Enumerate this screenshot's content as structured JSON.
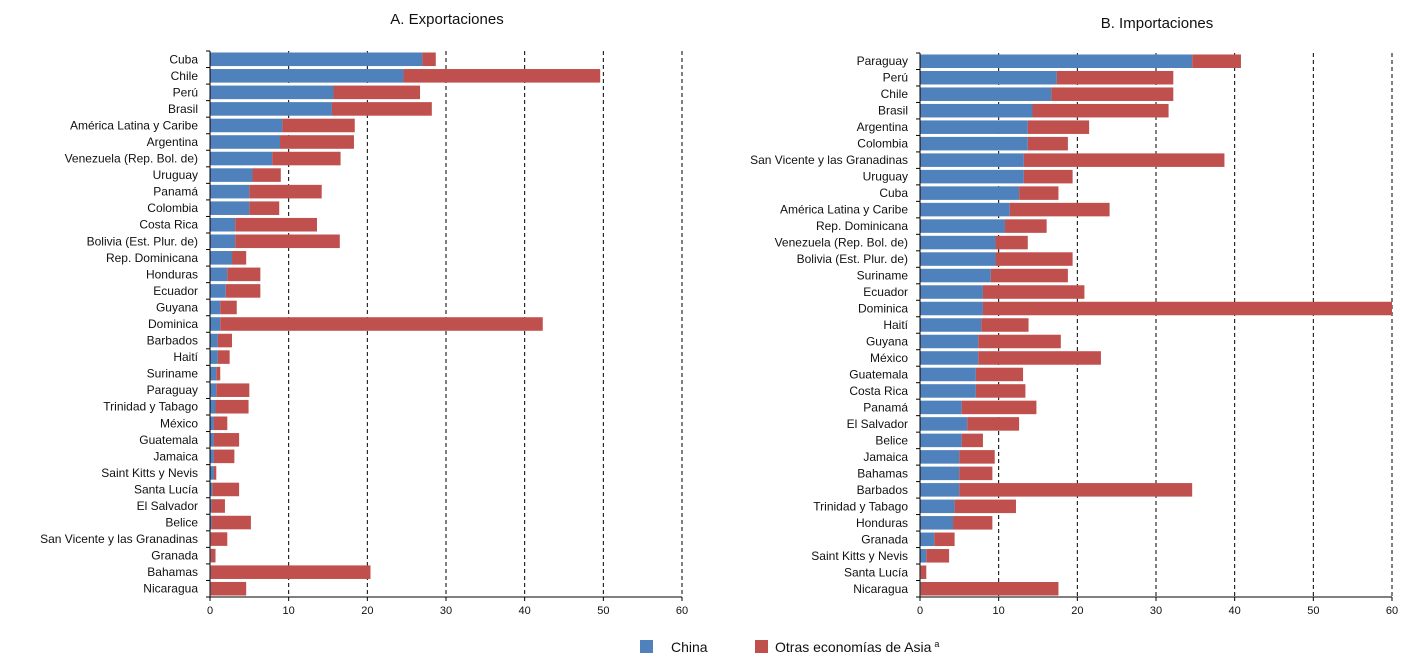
{
  "legend": {
    "china": "China",
    "otras": "Otras economías de Asia",
    "otras_superscript": "a"
  },
  "colors": {
    "china": "#4f81bd",
    "otras": "#c0504d",
    "grid": "#000000"
  },
  "chart_data": [
    {
      "type": "bar",
      "orientation": "horizontal",
      "stacked": true,
      "title": "A. Exportaciones",
      "xlim": [
        0,
        60
      ],
      "xticks": [
        0,
        10,
        20,
        30,
        40,
        50,
        60
      ],
      "grid": "vertical dashed",
      "categories": [
        "Cuba",
        "Chile",
        "Perú",
        "Brasil",
        "América Latina y Caribe",
        "Argentina",
        "Venezuela (Rep. Bol. de)",
        "Uruguay",
        "Panamá",
        "Colombia",
        "Costa Rica",
        "Bolivia (Est. Plur. de)",
        "Rep. Dominicana",
        "Honduras",
        "Ecuador",
        "Guyana",
        "Dominica",
        "Barbados",
        "Haití",
        "Suriname",
        "Paraguay",
        "Trinidad y Tabago",
        "México",
        "Guatemala",
        "Jamaica",
        "Saint Kitts y Nevis",
        "Santa Lucía",
        "El Salvador",
        "Belice",
        "San Vicente y las Granadinas",
        "Granada",
        "Bahamas",
        "Nicaragua"
      ],
      "series": [
        {
          "name": "China",
          "values": [
            27.0,
            24.6,
            15.7,
            15.5,
            9.2,
            8.9,
            7.9,
            5.4,
            5.0,
            5.0,
            3.2,
            3.2,
            2.8,
            2.2,
            2.0,
            1.3,
            1.3,
            1.0,
            1.0,
            0.8,
            0.8,
            0.7,
            0.5,
            0.5,
            0.5,
            0.5,
            0.3,
            0.2,
            0.2,
            0.1,
            0.1,
            0.1,
            0.1
          ]
        },
        {
          "name": "Otras economías de Asia",
          "values": [
            1.7,
            25.0,
            11.0,
            12.7,
            9.2,
            9.4,
            8.7,
            3.6,
            9.2,
            3.8,
            10.4,
            13.3,
            1.8,
            4.2,
            4.4,
            2.1,
            41.0,
            1.8,
            1.5,
            0.5,
            4.2,
            4.2,
            1.7,
            3.2,
            2.6,
            0.3,
            3.4,
            1.7,
            5.0,
            2.1,
            0.6,
            20.3,
            4.5
          ]
        }
      ]
    },
    {
      "type": "bar",
      "orientation": "horizontal",
      "stacked": true,
      "title": "B. Importaciones",
      "xlim": [
        0,
        60
      ],
      "xticks": [
        0,
        10,
        20,
        30,
        40,
        50,
        60
      ],
      "grid": "vertical dashed",
      "categories": [
        "Paraguay",
        "Perú",
        "Chile",
        "Brasil",
        "Argentina",
        "Colombia",
        "San Vicente y las Granadinas",
        "Uruguay",
        "Cuba",
        "América Latina y Caribe",
        "Rep. Dominicana",
        "Venezuela  (Rep. Bol. de)",
        "Bolivia (Est. Plur. de)",
        "Suriname",
        "Ecuador",
        "Dominica",
        "Haití",
        "Guyana",
        "México",
        "Guatemala",
        "Costa Rica",
        "Panamá",
        "El Salvador",
        "Belice",
        "Jamaica",
        "Bahamas",
        "Barbados",
        "Trinidad y Tabago",
        "Honduras",
        "Granada",
        "Saint Kitts y Nevis",
        "Santa Lucía",
        "Nicaragua"
      ],
      "series": [
        {
          "name": "China",
          "values": [
            34.6,
            17.4,
            16.7,
            14.3,
            13.7,
            13.7,
            13.2,
            13.2,
            12.6,
            11.4,
            10.8,
            9.6,
            9.6,
            9.0,
            8.0,
            8.0,
            7.8,
            7.4,
            7.4,
            7.1,
            7.1,
            5.3,
            6.0,
            5.3,
            5.0,
            5.0,
            5.0,
            4.4,
            4.2,
            1.8,
            0.8,
            0.1,
            0.1
          ]
        },
        {
          "name": "Otras economías de Asia",
          "values": [
            6.2,
            14.8,
            15.5,
            17.3,
            7.8,
            5.1,
            25.5,
            6.2,
            5.0,
            12.7,
            5.3,
            4.1,
            9.8,
            9.8,
            12.9,
            52.0,
            6.0,
            10.5,
            15.6,
            6.0,
            6.3,
            9.5,
            6.6,
            2.7,
            4.5,
            4.2,
            29.6,
            7.8,
            5.0,
            2.6,
            2.9,
            0.7,
            17.5
          ]
        }
      ]
    }
  ]
}
